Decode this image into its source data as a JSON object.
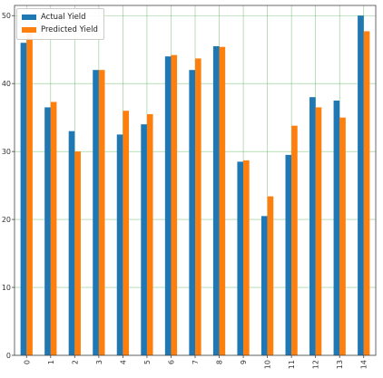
{
  "chart_data": {
    "type": "bar",
    "categories": [
      "0",
      "1",
      "2",
      "3",
      "4",
      "5",
      "6",
      "7",
      "8",
      "9",
      "10",
      "11",
      "12",
      "13",
      "14"
    ],
    "series": [
      {
        "name": "Actual Yield",
        "color": "#1f77b4",
        "values": [
          46,
          36.5,
          33,
          42,
          32.5,
          34,
          44,
          42,
          45.5,
          28.5,
          20.5,
          29.5,
          38,
          37.5,
          50
        ]
      },
      {
        "name": "Predicted Yield",
        "color": "#ff7f0e",
        "values": [
          48,
          37.3,
          30,
          42,
          36,
          35.5,
          44.2,
          43.7,
          45.4,
          28.7,
          23.4,
          33.8,
          36.5,
          35,
          47.7
        ]
      }
    ],
    "ylim": [
      0,
      51.5
    ],
    "yticks": [
      0,
      10,
      20,
      30,
      40,
      50
    ],
    "grid": true,
    "legend_position": "top-left",
    "xtick_rotation": "vertical",
    "grid_color": "#2ca02c"
  }
}
